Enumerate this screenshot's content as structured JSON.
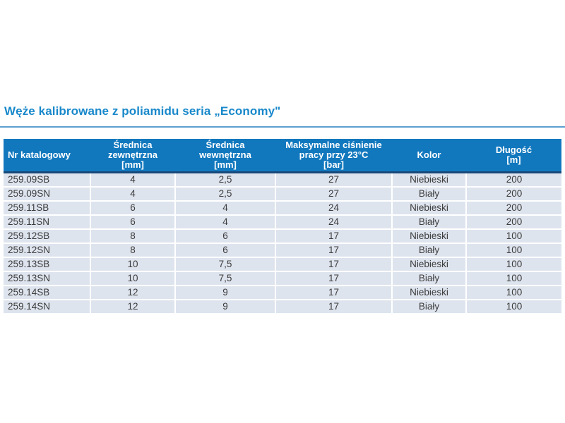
{
  "page": {
    "title": "Węże kalibrowane z poliamidu seria „Economy\""
  },
  "table": {
    "columns": [
      {
        "label": "Nr katalogowy"
      },
      {
        "label": "Średnica\nzewnętrzna\n[mm]"
      },
      {
        "label": "Średnica\nwewnętrzna\n[mm]"
      },
      {
        "label": "Maksymalne ciśnienie\npracy przy 23°C\n[bar]"
      },
      {
        "label": "Kolor"
      },
      {
        "label": "Długość\n[m]"
      }
    ],
    "rows": [
      [
        "259.09SB",
        "4",
        "2,5",
        "27",
        "Niebieski",
        "200"
      ],
      [
        "259.09SN",
        "4",
        "2,5",
        "27",
        "Biały",
        "200"
      ],
      [
        "259.11SB",
        "6",
        "4",
        "24",
        "Niebieski",
        "200"
      ],
      [
        "259.11SN",
        "6",
        "4",
        "24",
        "Biały",
        "200"
      ],
      [
        "259.12SB",
        "8",
        "6",
        "17",
        "Niebieski",
        "100"
      ],
      [
        "259.12SN",
        "8",
        "6",
        "17",
        "Biały",
        "100"
      ],
      [
        "259.13SB",
        "10",
        "7,5",
        "17",
        "Niebieski",
        "100"
      ],
      [
        "259.13SN",
        "10",
        "7,5",
        "17",
        "Biały",
        "100"
      ],
      [
        "259.14SB",
        "12",
        "9",
        "17",
        "Niebieski",
        "100"
      ],
      [
        "259.14SN",
        "12",
        "9",
        "17",
        "Biały",
        "100"
      ]
    ]
  },
  "colors": {
    "title": "#1888CA",
    "rule": "#5B9FD2",
    "header_bg": "#1278BE",
    "header_border": "#17497A",
    "header_text": "#FFFFFF",
    "row_bg": "#DEE4EE",
    "row_text": "#3C3C3C",
    "page_bg": "#FFFFFF"
  }
}
